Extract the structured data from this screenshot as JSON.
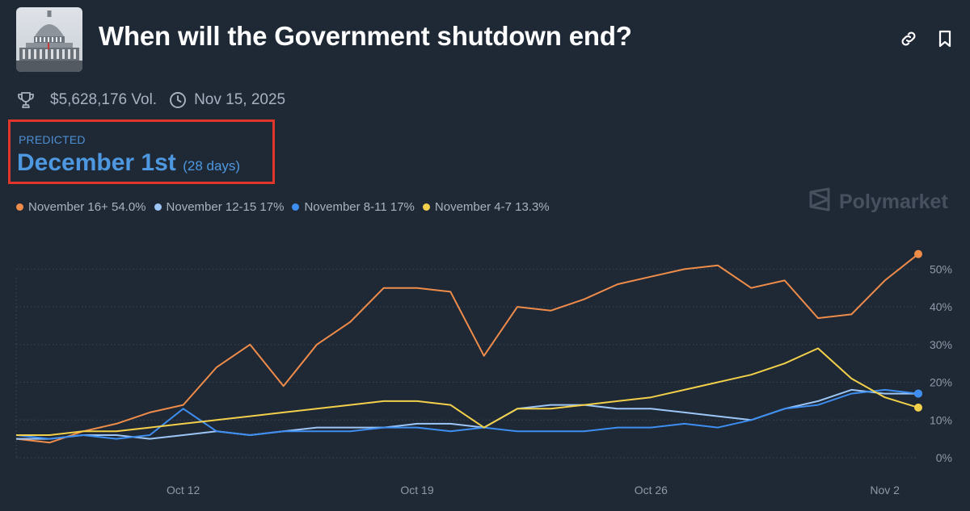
{
  "header": {
    "title": "When will the Government shutdown end?",
    "volume": "$5,628,176 Vol.",
    "date": "Nov 15, 2025"
  },
  "predicted": {
    "label": "PREDICTED",
    "value": "December 1st",
    "days": "(28 days)"
  },
  "brand": "Polymarket",
  "icons": {
    "thumbnail": "capitol-building-thumbnail",
    "link": "link-icon",
    "bookmark": "bookmark-icon",
    "trophy": "trophy-icon",
    "clock": "clock-icon",
    "brand": "polymarket-logo-icon"
  },
  "colors": {
    "background": "#1f2936",
    "orange": "#f08c4a",
    "light_blue": "#9dc6f7",
    "blue": "#3d8ef0",
    "yellow": "#f2d04a",
    "highlight_border": "#e0362c"
  },
  "chart_data": {
    "type": "line",
    "title": "",
    "xlabel": "",
    "ylabel": "",
    "ylim": [
      0,
      55
    ],
    "yticks": [
      "0%",
      "10%",
      "20%",
      "30%",
      "40%",
      "50%"
    ],
    "xticks": [
      "Oct 12",
      "Oct 19",
      "Oct 26",
      "Nov 2"
    ],
    "legend_position": "top-left",
    "grid": "horizontal dotted",
    "x": [
      "Oct 7",
      "Oct 8",
      "Oct 9",
      "Oct 10",
      "Oct 11",
      "Oct 12",
      "Oct 13",
      "Oct 14",
      "Oct 15",
      "Oct 16",
      "Oct 17",
      "Oct 18",
      "Oct 19",
      "Oct 20",
      "Oct 21",
      "Oct 22",
      "Oct 23",
      "Oct 24",
      "Oct 25",
      "Oct 26",
      "Oct 27",
      "Oct 28",
      "Oct 29",
      "Oct 30",
      "Oct 31",
      "Nov 1",
      "Nov 2",
      "Nov 3"
    ],
    "series": [
      {
        "name": "November 16+",
        "label": "November 16+ 54.0%",
        "color": "#f08c4a",
        "values": [
          5,
          4,
          7,
          9,
          12,
          14,
          24,
          30,
          19,
          30,
          36,
          45,
          45,
          44,
          27,
          40,
          39,
          42,
          46,
          48,
          50,
          51,
          45,
          47,
          37,
          38,
          47,
          54
        ]
      },
      {
        "name": "November 12-15",
        "label": "November 12-15 17%",
        "color": "#9dc6f7",
        "values": [
          5,
          5,
          6,
          6,
          5,
          6,
          7,
          6,
          7,
          8,
          8,
          8,
          9,
          9,
          8,
          13,
          14,
          14,
          13,
          13,
          12,
          11,
          10,
          13,
          15,
          18,
          17,
          17
        ]
      },
      {
        "name": "November 8-11",
        "label": "November 8-11 17%",
        "color": "#3d8ef0",
        "values": [
          6,
          5,
          6,
          5,
          6,
          13,
          7,
          6,
          7,
          7,
          7,
          8,
          8,
          7,
          8,
          7,
          7,
          7,
          8,
          8,
          9,
          8,
          10,
          13,
          14,
          17,
          18,
          17
        ]
      },
      {
        "name": "November 4-7",
        "label": "November 4-7 13.3%",
        "color": "#f2d04a",
        "values": [
          6,
          6,
          7,
          7,
          8,
          9,
          10,
          11,
          12,
          13,
          14,
          15,
          15,
          14,
          8,
          13,
          13,
          14,
          15,
          16,
          18,
          20,
          22,
          25,
          29,
          21,
          16,
          13.3
        ]
      }
    ]
  }
}
